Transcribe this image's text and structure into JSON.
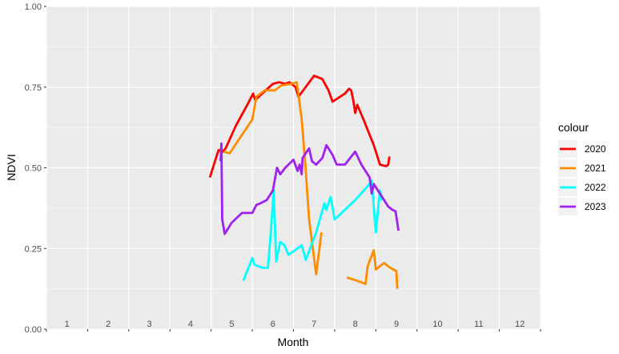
{
  "chart_data": {
    "type": "line",
    "xlabel": "Month",
    "ylabel": "NDVI",
    "xlim": [
      0,
      12
    ],
    "ylim": [
      0,
      1
    ],
    "x_ticks": [
      "1",
      "2",
      "3",
      "4",
      "5",
      "6",
      "7",
      "8",
      "9",
      "10",
      "11",
      "12"
    ],
    "y_ticks": [
      "0.00",
      "0.25",
      "0.50",
      "0.75",
      "1.00"
    ],
    "y_tick_values": [
      0,
      0.25,
      0.5,
      0.75,
      1.0
    ],
    "legend": {
      "title": "colour",
      "position": "right"
    },
    "grid": true,
    "panel_background": "#EBEBEB",
    "series": [
      {
        "name": "2020",
        "color": "#FF0000",
        "points": [
          [
            3.97,
            0.47
          ],
          [
            4.18,
            0.555
          ],
          [
            4.28,
            0.55
          ],
          [
            4.35,
            0.56
          ],
          [
            4.6,
            0.63
          ],
          [
            4.9,
            0.7
          ],
          [
            5.02,
            0.73
          ],
          [
            5.07,
            0.71
          ],
          [
            5.5,
            0.76
          ],
          [
            5.65,
            0.765
          ],
          [
            5.8,
            0.76
          ],
          [
            5.9,
            0.765
          ],
          [
            6.05,
            0.75
          ],
          [
            6.12,
            0.72
          ],
          [
            6.5,
            0.785
          ],
          [
            6.7,
            0.775
          ],
          [
            6.85,
            0.74
          ],
          [
            6.95,
            0.705
          ],
          [
            7.25,
            0.73
          ],
          [
            7.35,
            0.745
          ],
          [
            7.4,
            0.74
          ],
          [
            7.45,
            0.71
          ],
          [
            7.5,
            0.67
          ],
          [
            7.55,
            0.695
          ],
          [
            7.7,
            0.65
          ],
          [
            7.95,
            0.57
          ],
          [
            8.1,
            0.51
          ],
          [
            8.25,
            0.505
          ],
          [
            8.3,
            0.51
          ],
          [
            8.33,
            0.535
          ]
        ]
      },
      {
        "name": "2021",
        "color": "#FF8C00",
        "points": [
          [
            4.3,
            0.55
          ],
          [
            4.45,
            0.545
          ],
          [
            5.0,
            0.65
          ],
          [
            5.1,
            0.72
          ],
          [
            5.3,
            0.74
          ],
          [
            5.55,
            0.74
          ],
          [
            5.7,
            0.755
          ],
          [
            5.95,
            0.76
          ],
          [
            6.08,
            0.765
          ],
          [
            6.2,
            0.65
          ],
          [
            6.3,
            0.49
          ],
          [
            6.38,
            0.34
          ],
          [
            6.55,
            0.17
          ],
          [
            6.68,
            0.3
          ],
          null,
          [
            7.3,
            0.16
          ],
          [
            7.55,
            0.15
          ],
          [
            7.75,
            0.14
          ],
          [
            7.8,
            0.195
          ],
          [
            7.95,
            0.245
          ],
          [
            8.0,
            0.185
          ],
          [
            8.2,
            0.205
          ],
          [
            8.35,
            0.19
          ],
          [
            8.5,
            0.18
          ],
          [
            8.52,
            0.125
          ]
        ]
      },
      {
        "name": "2022",
        "color": "#00FFFF",
        "points": [
          [
            4.78,
            0.15
          ],
          [
            5.0,
            0.22
          ],
          [
            5.05,
            0.2
          ],
          [
            5.25,
            0.19
          ],
          [
            5.38,
            0.19
          ],
          [
            5.45,
            0.3
          ],
          [
            5.52,
            0.43
          ],
          [
            5.58,
            0.21
          ],
          [
            5.68,
            0.27
          ],
          [
            5.78,
            0.26
          ],
          [
            5.88,
            0.23
          ],
          [
            6.2,
            0.26
          ],
          [
            6.3,
            0.215
          ],
          [
            6.55,
            0.3
          ],
          [
            6.75,
            0.39
          ],
          [
            6.8,
            0.37
          ],
          [
            6.9,
            0.41
          ],
          [
            7.0,
            0.34
          ],
          [
            7.5,
            0.4
          ],
          [
            7.85,
            0.45
          ],
          [
            7.9,
            0.46
          ],
          [
            8.0,
            0.3
          ],
          [
            8.1,
            0.43
          ],
          [
            8.15,
            0.4
          ]
        ]
      },
      {
        "name": "2023",
        "color": "#A020F0",
        "points": [
          [
            4.23,
            0.52
          ],
          [
            4.25,
            0.575
          ],
          [
            4.27,
            0.34
          ],
          [
            4.33,
            0.295
          ],
          [
            4.5,
            0.33
          ],
          [
            4.75,
            0.36
          ],
          [
            5.0,
            0.36
          ],
          [
            5.1,
            0.385
          ],
          [
            5.2,
            0.39
          ],
          [
            5.35,
            0.4
          ],
          [
            5.5,
            0.43
          ],
          [
            5.6,
            0.5
          ],
          [
            5.68,
            0.48
          ],
          [
            5.8,
            0.5
          ],
          [
            6.0,
            0.525
          ],
          [
            6.1,
            0.49
          ],
          [
            6.15,
            0.51
          ],
          [
            6.2,
            0.48
          ],
          [
            6.22,
            0.53
          ],
          [
            6.35,
            0.555
          ],
          [
            6.38,
            0.56
          ],
          [
            6.45,
            0.52
          ],
          [
            6.55,
            0.51
          ],
          [
            6.7,
            0.53
          ],
          [
            6.8,
            0.57
          ],
          [
            6.95,
            0.54
          ],
          [
            7.05,
            0.51
          ],
          [
            7.25,
            0.51
          ],
          [
            7.5,
            0.55
          ],
          [
            7.65,
            0.51
          ],
          [
            7.85,
            0.47
          ],
          [
            7.9,
            0.42
          ],
          [
            7.95,
            0.45
          ],
          [
            8.05,
            0.43
          ],
          [
            8.2,
            0.4
          ],
          [
            8.3,
            0.38
          ],
          [
            8.4,
            0.37
          ],
          [
            8.48,
            0.365
          ],
          [
            8.55,
            0.305
          ]
        ]
      }
    ]
  }
}
